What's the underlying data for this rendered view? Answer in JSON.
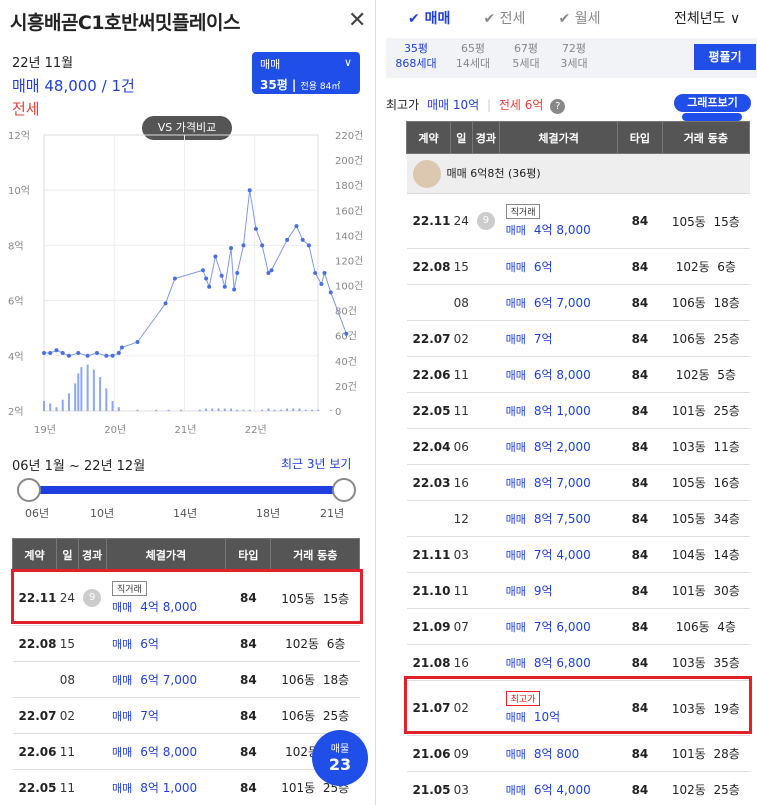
{
  "left": {
    "title": "시흥배곧C1호반써밋플레이스",
    "date": "22년 11월",
    "trade_summary": "매매 48,000 / 1건",
    "jeonse": "전세",
    "selector": {
      "type": "매매",
      "size": "35평",
      "area": "전용 84㎡"
    },
    "vs_button": "VS 가격비교",
    "range_text": "06년 1월 ~ 22년 12월",
    "recent_link": "최근 3년 보기",
    "slider_ticks": [
      "06년",
      "10년",
      "14년",
      "18년",
      "21년"
    ],
    "fab": {
      "label": "매물",
      "count": "23"
    }
  },
  "chart_data": {
    "type": "line",
    "y_left_ticks": [
      "12억",
      "10억",
      "8억",
      "6억",
      "4억",
      "2억"
    ],
    "y_right_ticks": [
      "220건",
      "200건",
      "180건",
      "160건",
      "140건",
      "120건",
      "100건",
      "80건",
      "60건",
      "40건",
      "20건",
      "0"
    ],
    "x_ticks": [
      "19년",
      "20년",
      "21년",
      "22년"
    ],
    "ylim": [
      2,
      12
    ],
    "series": [
      {
        "values": [
          [
            0,
            4.1
          ],
          [
            0.1,
            4.1
          ],
          [
            0.2,
            4.2
          ],
          [
            0.3,
            4.1
          ],
          [
            0.4,
            4.0
          ],
          [
            0.55,
            4.1
          ],
          [
            0.7,
            4.0
          ],
          [
            0.85,
            4.1
          ],
          [
            1.0,
            4.0
          ],
          [
            1.1,
            4.0
          ],
          [
            1.2,
            4.1
          ],
          [
            1.25,
            4.3
          ],
          [
            1.5,
            4.5
          ],
          [
            1.95,
            5.9
          ],
          [
            2.1,
            6.8
          ],
          [
            2.55,
            7.1
          ],
          [
            2.6,
            6.8
          ],
          [
            2.65,
            6.5
          ],
          [
            2.75,
            7.6
          ],
          [
            2.85,
            6.9
          ],
          [
            2.9,
            6.5
          ],
          [
            3.0,
            7.9
          ],
          [
            3.05,
            6.4
          ],
          [
            3.1,
            7.0
          ],
          [
            3.2,
            8.0
          ],
          [
            3.3,
            10.0
          ],
          [
            3.4,
            8.6
          ],
          [
            3.5,
            8.0
          ],
          [
            3.6,
            7.0
          ],
          [
            3.65,
            7.1
          ],
          [
            3.9,
            8.2
          ],
          [
            4.05,
            8.7
          ],
          [
            4.15,
            8.2
          ],
          [
            4.25,
            8.0
          ],
          [
            4.35,
            7.0
          ],
          [
            4.45,
            6.6
          ],
          [
            4.5,
            7.0
          ],
          [
            4.6,
            6.3
          ],
          [
            4.85,
            4.8
          ]
        ]
      }
    ],
    "volume": [
      [
        0,
        8
      ],
      [
        0.1,
        6
      ],
      [
        0.2,
        3
      ],
      [
        0.3,
        9
      ],
      [
        0.4,
        14
      ],
      [
        0.5,
        22
      ],
      [
        0.55,
        30
      ],
      [
        0.6,
        35
      ],
      [
        0.7,
        37
      ],
      [
        0.8,
        33
      ],
      [
        0.9,
        27
      ],
      [
        1.0,
        18
      ],
      [
        1.1,
        8
      ],
      [
        1.2,
        3
      ],
      [
        1.5,
        1
      ],
      [
        1.8,
        1
      ],
      [
        2.0,
        1
      ],
      [
        2.2,
        1
      ],
      [
        2.5,
        1
      ],
      [
        2.6,
        2
      ],
      [
        2.7,
        2
      ],
      [
        2.8,
        2
      ],
      [
        2.9,
        2
      ],
      [
        3.0,
        2
      ],
      [
        3.1,
        1
      ],
      [
        3.2,
        1
      ],
      [
        3.3,
        1
      ],
      [
        3.5,
        1
      ],
      [
        3.6,
        2
      ],
      [
        3.7,
        1
      ],
      [
        3.8,
        1
      ],
      [
        3.9,
        2
      ],
      [
        4.0,
        2
      ],
      [
        4.1,
        2
      ],
      [
        4.2,
        1
      ],
      [
        4.3,
        1
      ],
      [
        4.4,
        1
      ],
      [
        4.6,
        1
      ]
    ]
  },
  "table_headers": [
    "계약",
    "일",
    "경과",
    "체결가격",
    "타입",
    "거래 동층"
  ],
  "left_rows": [
    {
      "date": "22.11",
      "day": "24",
      "elapsed": "9",
      "tag": "직거래",
      "kind": "매매",
      "price": "4억 8,000",
      "type": "84",
      "dong": "105동",
      "floor": "15층"
    },
    {
      "date": "22.08",
      "day": "15",
      "elapsed": "",
      "tag": "",
      "kind": "매매",
      "price": "6억",
      "type": "84",
      "dong": "102동",
      "floor": "6층"
    },
    {
      "date": "",
      "day": "08",
      "elapsed": "",
      "tag": "",
      "kind": "매매",
      "price": "6억 7,000",
      "type": "84",
      "dong": "106동",
      "floor": "18층"
    },
    {
      "date": "22.07",
      "day": "02",
      "elapsed": "",
      "tag": "",
      "kind": "매매",
      "price": "7억",
      "type": "84",
      "dong": "106동",
      "floor": "25층"
    },
    {
      "date": "22.06",
      "day": "11",
      "elapsed": "",
      "tag": "",
      "kind": "매매",
      "price": "6억 8,000",
      "type": "84",
      "dong": "102동",
      "floor": "5층"
    },
    {
      "date": "22.05",
      "day": "11",
      "elapsed": "",
      "tag": "",
      "kind": "매매",
      "price": "8억 1,000",
      "type": "84",
      "dong": "101동",
      "floor": "25층"
    }
  ],
  "right": {
    "tabs": [
      "매매",
      "전세",
      "월세"
    ],
    "year_filter": "전체년도",
    "sizes": [
      {
        "p": "35평",
        "n": "868세대"
      },
      {
        "p": "65평",
        "n": "14세대"
      },
      {
        "p": "67평",
        "n": "5세대"
      },
      {
        "p": "72평",
        "n": "3세대"
      }
    ],
    "pyeong_button": "평풀기",
    "high_label": "최고가",
    "high_sale": "매매 10억",
    "high_jeonse": "전세 6억",
    "graph_button": "그래프보기",
    "agent_row": "매매 6억8천 (36평)"
  },
  "right_rows": [
    {
      "date": "22.11",
      "day": "24",
      "elapsed": "9",
      "tag": "직거래",
      "kind": "매매",
      "price": "4억 8,000",
      "type": "84",
      "dong": "105동",
      "floor": "15층"
    },
    {
      "date": "22.08",
      "day": "15",
      "elapsed": "",
      "tag": "",
      "kind": "매매",
      "price": "6억",
      "type": "84",
      "dong": "102동",
      "floor": "6층"
    },
    {
      "date": "",
      "day": "08",
      "elapsed": "",
      "tag": "",
      "kind": "매매",
      "price": "6억 7,000",
      "type": "84",
      "dong": "106동",
      "floor": "18층"
    },
    {
      "date": "22.07",
      "day": "02",
      "elapsed": "",
      "tag": "",
      "kind": "매매",
      "price": "7억",
      "type": "84",
      "dong": "106동",
      "floor": "25층"
    },
    {
      "date": "22.06",
      "day": "11",
      "elapsed": "",
      "tag": "",
      "kind": "매매",
      "price": "6억 8,000",
      "type": "84",
      "dong": "102동",
      "floor": "5층"
    },
    {
      "date": "22.05",
      "day": "11",
      "elapsed": "",
      "tag": "",
      "kind": "매매",
      "price": "8억 1,000",
      "type": "84",
      "dong": "101동",
      "floor": "25층"
    },
    {
      "date": "22.04",
      "day": "06",
      "elapsed": "",
      "tag": "",
      "kind": "매매",
      "price": "8억 2,000",
      "type": "84",
      "dong": "103동",
      "floor": "11층"
    },
    {
      "date": "22.03",
      "day": "16",
      "elapsed": "",
      "tag": "",
      "kind": "매매",
      "price": "8억 7,000",
      "type": "84",
      "dong": "105동",
      "floor": "16층"
    },
    {
      "date": "",
      "day": "12",
      "elapsed": "",
      "tag": "",
      "kind": "매매",
      "price": "8억 7,500",
      "type": "84",
      "dong": "105동",
      "floor": "34층"
    },
    {
      "date": "21.11",
      "day": "03",
      "elapsed": "",
      "tag": "",
      "kind": "매매",
      "price": "7억 4,000",
      "type": "84",
      "dong": "104동",
      "floor": "14층"
    },
    {
      "date": "21.10",
      "day": "11",
      "elapsed": "",
      "tag": "",
      "kind": "매매",
      "price": "9억",
      "type": "84",
      "dong": "101동",
      "floor": "30층"
    },
    {
      "date": "21.09",
      "day": "07",
      "elapsed": "",
      "tag": "",
      "kind": "매매",
      "price": "7억 6,000",
      "type": "84",
      "dong": "106동",
      "floor": "4층"
    },
    {
      "date": "21.08",
      "day": "16",
      "elapsed": "",
      "tag": "",
      "kind": "매매",
      "price": "8억 6,800",
      "type": "84",
      "dong": "103동",
      "floor": "35층"
    },
    {
      "date": "21.07",
      "day": "02",
      "elapsed": "",
      "tag": "최고가",
      "kind": "매매",
      "price": "10억",
      "type": "84",
      "dong": "103동",
      "floor": "19층"
    },
    {
      "date": "21.06",
      "day": "09",
      "elapsed": "",
      "tag": "",
      "kind": "매매",
      "price": "8억 800",
      "type": "84",
      "dong": "101동",
      "floor": "28층"
    },
    {
      "date": "21.05",
      "day": "03",
      "elapsed": "",
      "tag": "",
      "kind": "매매",
      "price": "6억 4,000",
      "type": "84",
      "dong": "102동",
      "floor": "25층"
    }
  ]
}
